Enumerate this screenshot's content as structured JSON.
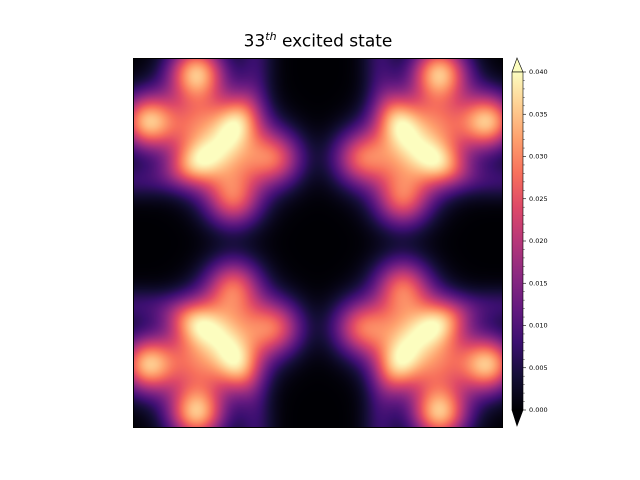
{
  "chart_data": {
    "type": "heatmap",
    "title": {
      "prefix": "33",
      "superscript": "th",
      "suffix": " excited state"
    },
    "colormap": "magma",
    "colorbar": {
      "min": 0.0,
      "max": 0.04,
      "extend": "both",
      "ticks": [
        "0.000",
        "0.005",
        "0.010",
        "0.015",
        "0.020",
        "0.025",
        "0.030",
        "0.035",
        "0.040"
      ],
      "tick_values": [
        0.0,
        0.005,
        0.01,
        0.015,
        0.02,
        0.025,
        0.03,
        0.035,
        0.04
      ]
    },
    "axes_visible": false
  }
}
